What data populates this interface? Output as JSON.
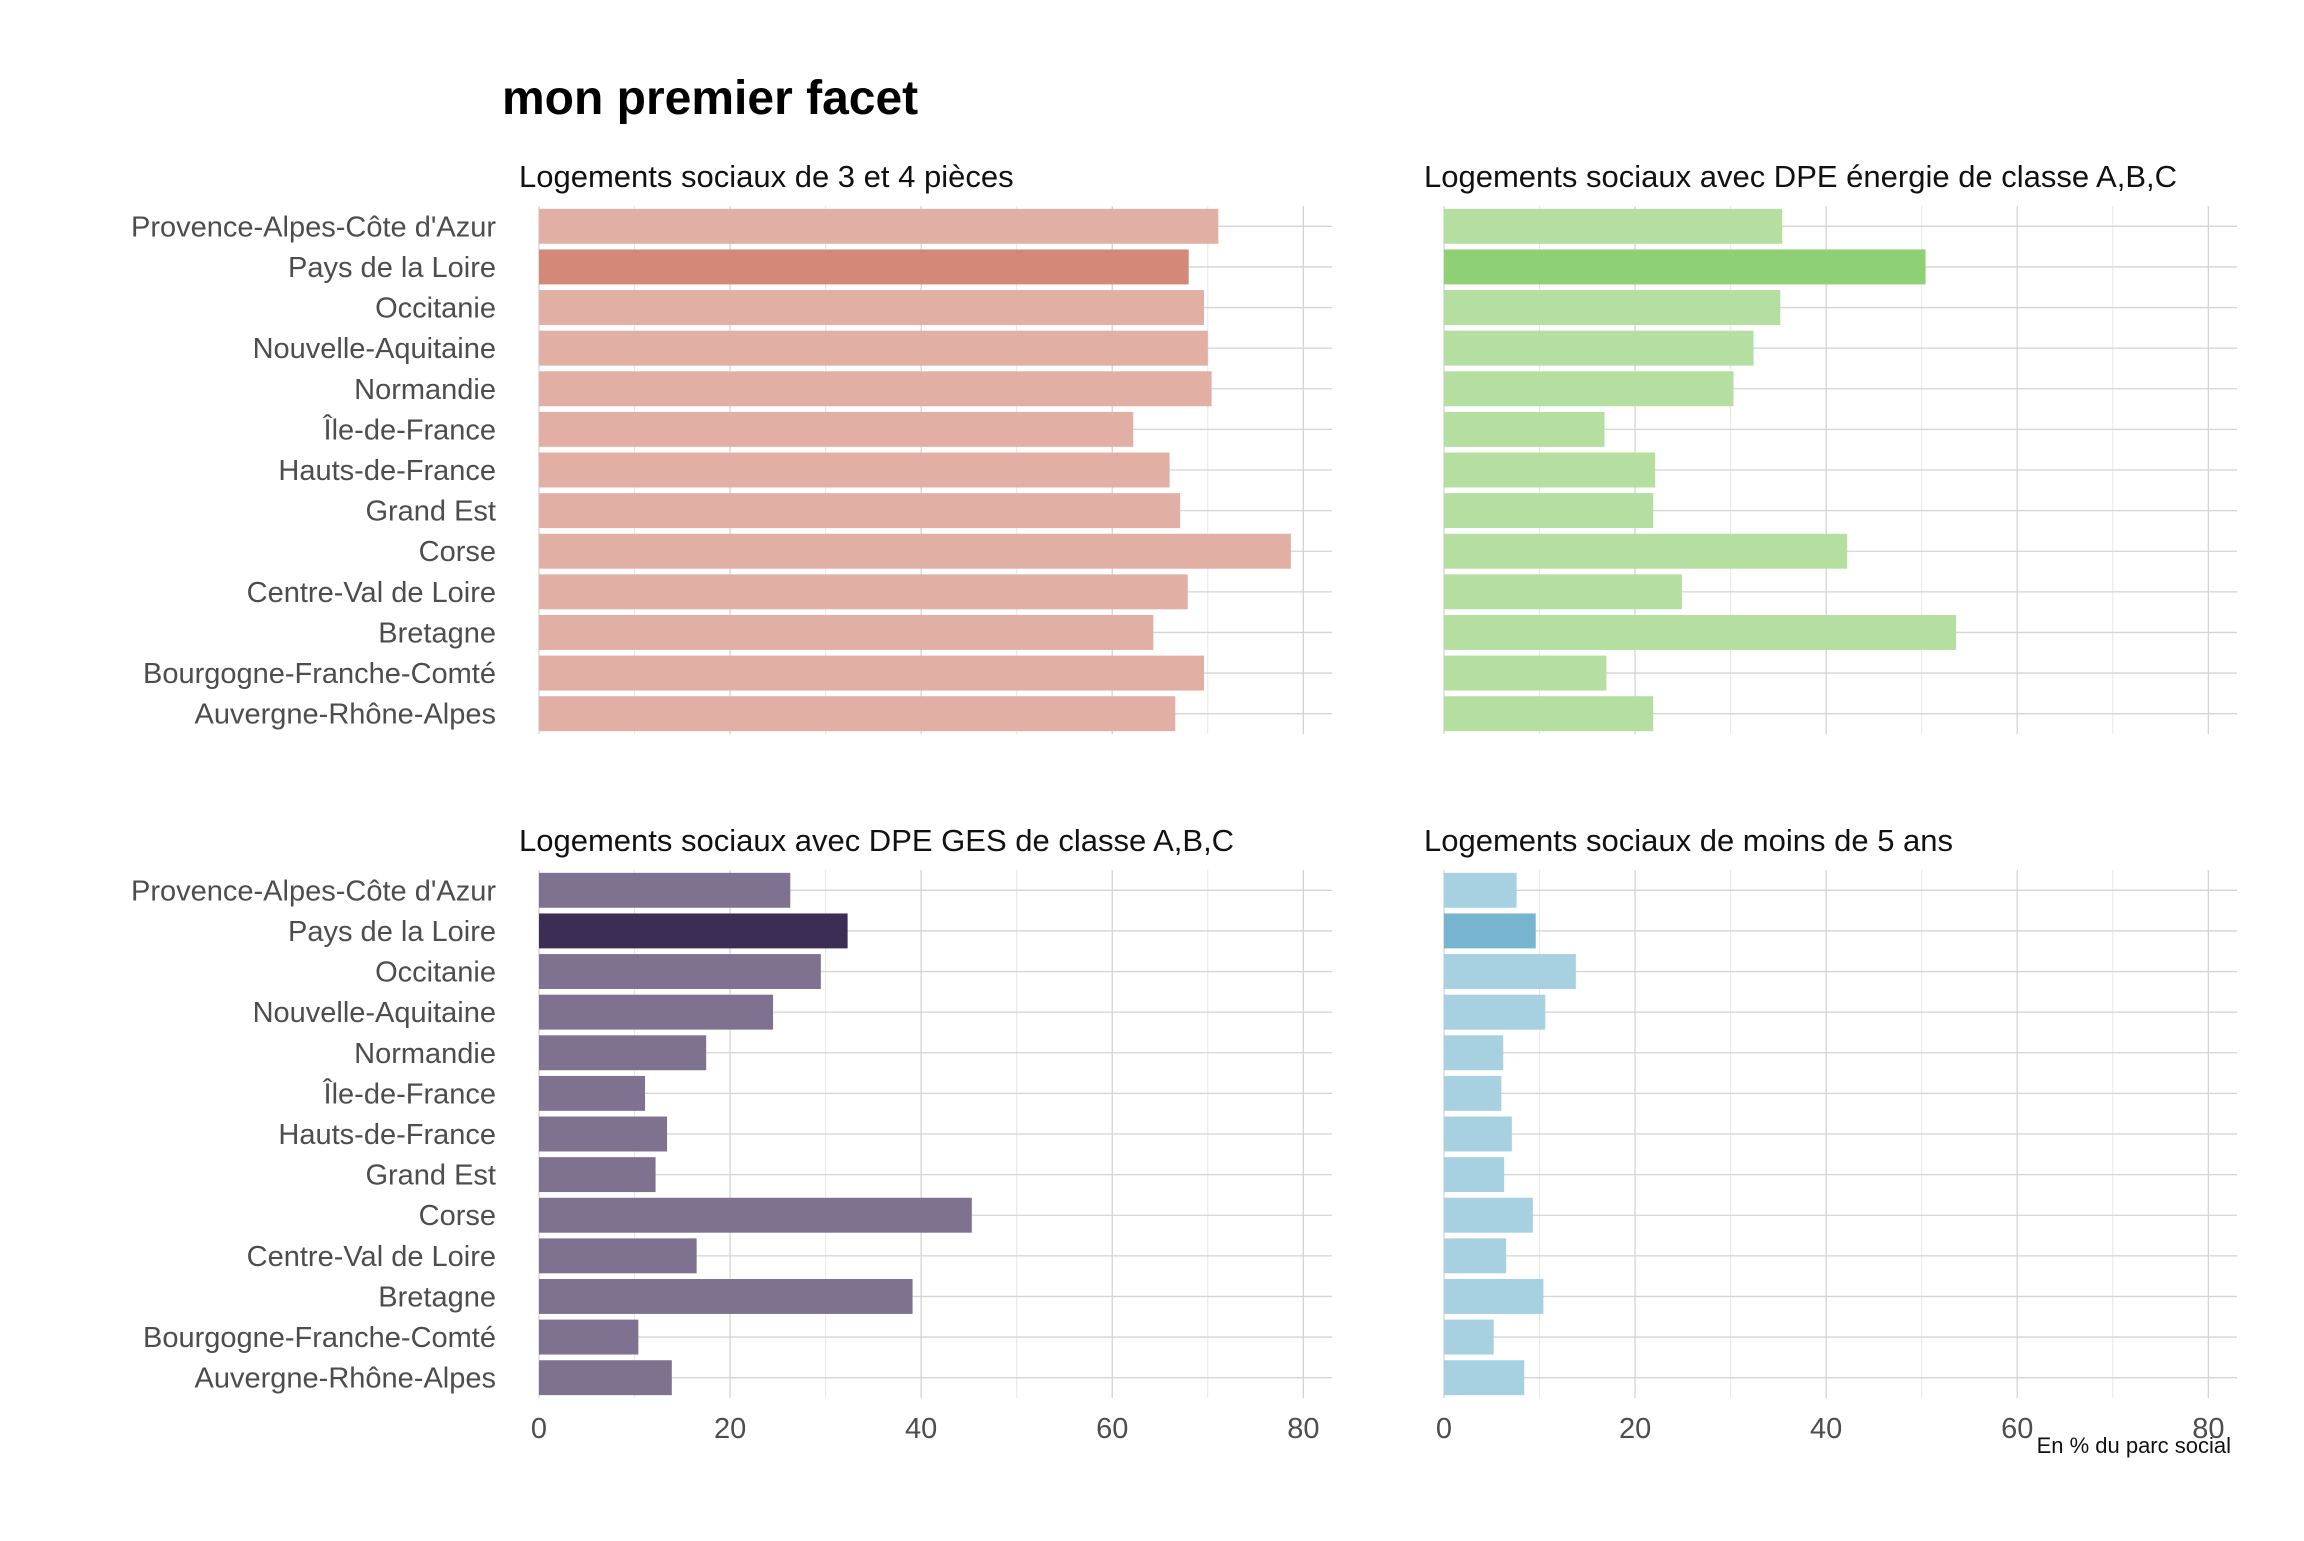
{
  "chart_data": {
    "type": "bar",
    "orientation": "horizontal",
    "title": "mon premier facet",
    "caption": "En % du parc social",
    "categories": [
      "Provence-Alpes-Côte d'Azur",
      "Pays de la Loire",
      "Occitanie",
      "Nouvelle-Aquitaine",
      "Normandie",
      "Île-de-France",
      "Hauts-de-France",
      "Grand Est",
      "Corse",
      "Centre-Val de Loire",
      "Bretagne",
      "Bourgogne-Franche-Comté",
      "Auvergne-Rhône-Alpes"
    ],
    "highlighted_category": "Pays de la Loire",
    "xlim": [
      0,
      83
    ],
    "x_ticks": [
      "0",
      "20",
      "40",
      "60",
      "80"
    ],
    "x_tick_values": [
      0,
      20,
      40,
      60,
      80
    ],
    "grid": true,
    "facets": [
      {
        "title": "Logements sociaux de 3 et 4 pièces",
        "color": "#e1afa4",
        "highlight_color": "#d48878",
        "values": [
          71.1,
          68.0,
          69.6,
          70.0,
          70.4,
          62.2,
          66.0,
          67.1,
          78.7,
          67.9,
          64.3,
          69.6,
          66.6
        ]
      },
      {
        "title": "Logements sociaux avec DPE énergie de classe A,B,C",
        "color": "#b4dfa0",
        "highlight_color": "#8ed074",
        "values": [
          35.4,
          50.4,
          35.2,
          32.4,
          30.3,
          16.8,
          22.1,
          21.9,
          42.2,
          24.9,
          53.6,
          17.0,
          21.9
        ]
      },
      {
        "title": "Logements sociaux avec DPE GES de classe A,B,C",
        "color": "#7f7290",
        "highlight_color": "#3c2d54",
        "values": [
          26.3,
          32.3,
          29.5,
          24.5,
          17.5,
          11.1,
          13.4,
          12.2,
          45.3,
          16.5,
          39.1,
          10.4,
          13.9
        ]
      },
      {
        "title": "Logements sociaux de moins de 5 ans",
        "color": "#a7d1e1",
        "highlight_color": "#76b4cf",
        "values": [
          7.6,
          9.6,
          13.8,
          10.6,
          6.2,
          6.0,
          7.1,
          6.3,
          9.3,
          6.5,
          10.4,
          5.2,
          8.4
        ]
      }
    ]
  }
}
